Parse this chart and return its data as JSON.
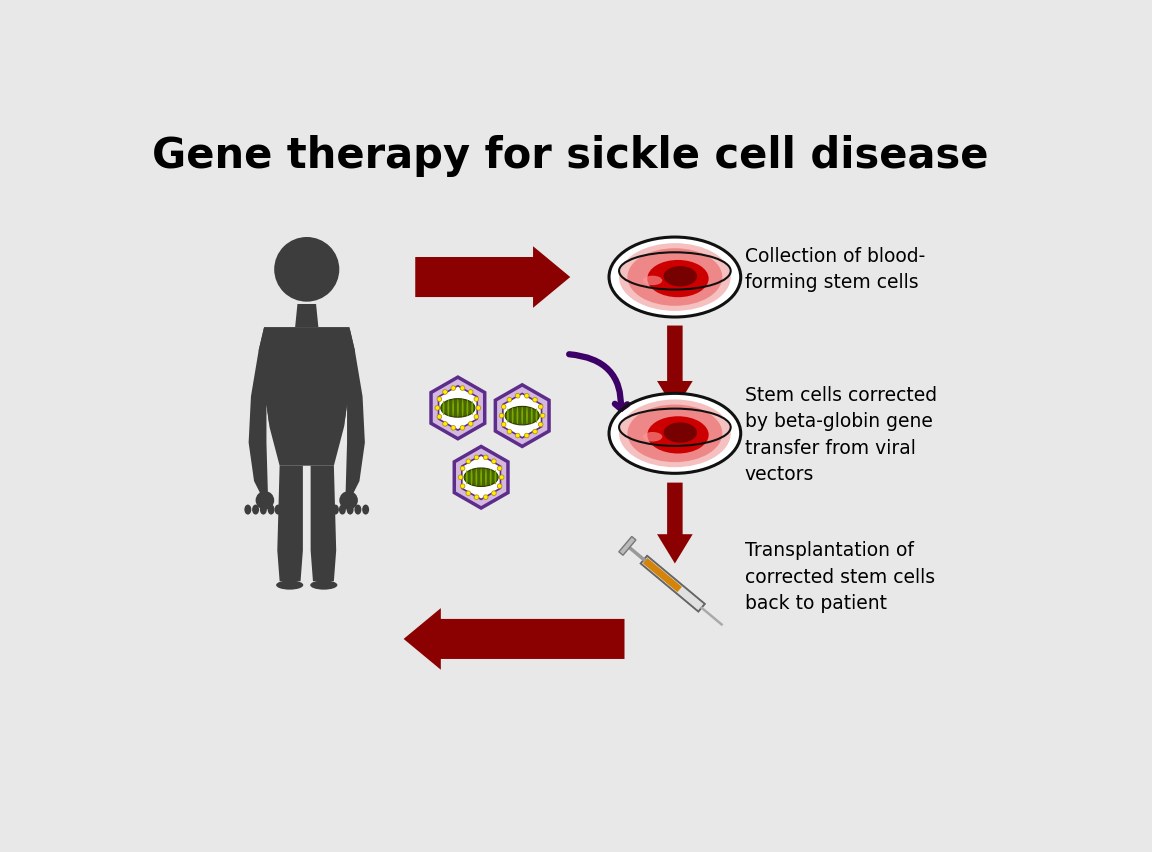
{
  "title": "Gene therapy for sickle cell disease",
  "title_fontsize": 30,
  "title_fontweight": "bold",
  "bg_color": "#e8e8e8",
  "dark_red": "#8B0000",
  "dark_gray": "#3d3d3d",
  "label1": "Collection of blood-\nforming stem cells",
  "label2": "Stem cells corrected\nby beta-globin gene\ntransfer from viral\nvectors",
  "label3": "Transplantation of\ncorrected stem cells\nback to patient",
  "figsize": [
    11.52,
    8.52
  ],
  "dpi": 100
}
